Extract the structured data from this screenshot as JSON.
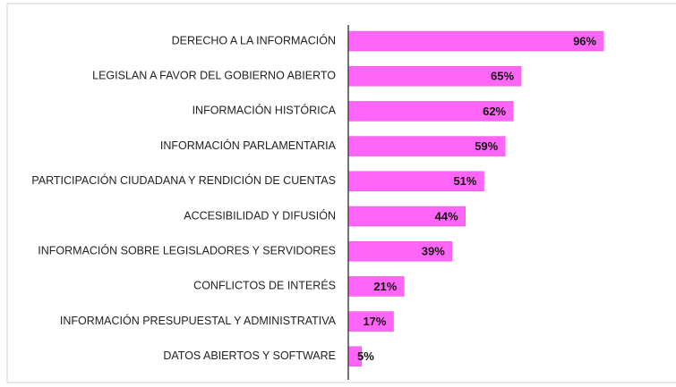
{
  "chart_data": {
    "type": "bar",
    "orientation": "horizontal",
    "categories": [
      "DERECHO A LA INFORMACIÓN",
      "LEGISLAN A FAVOR DEL GOBIERNO ABIERTO",
      "INFORMACIÓN HISTÓRICA",
      "INFORMACIÓN PARLAMENTARIA",
      "PARTICIPACIÓN CIUDADANA Y RENDICIÓN DE CUENTAS",
      "ACCESIBILIDAD Y DIFUSIÓN",
      "INFORMACIÓN SOBRE LEGISLADORES Y SERVIDORES",
      "CONFLICTOS DE INTERÉS",
      "INFORMACIÓN PRESUPUESTAL Y ADMINISTRATIVA",
      "DATOS ABIERTOS Y SOFTWARE"
    ],
    "values": [
      96,
      65,
      62,
      59,
      51,
      44,
      39,
      21,
      17,
      5
    ],
    "value_labels": [
      "96%",
      "65%",
      "62%",
      "59%",
      "51%",
      "44%",
      "39%",
      "21%",
      "17%",
      "5%"
    ],
    "color": "#ff66f7",
    "xlim": [
      0,
      100
    ]
  }
}
